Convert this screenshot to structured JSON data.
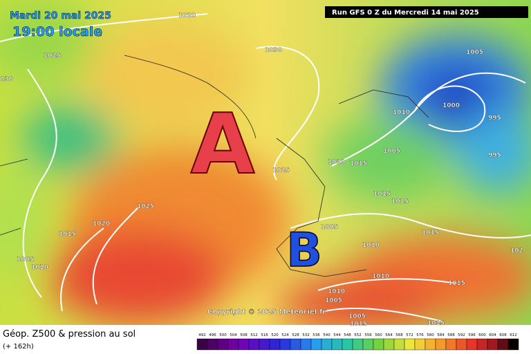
{
  "header": {
    "date": "Mardi 20 mai 2025",
    "time": "19:00 locale",
    "run": "Run GFS 0 Z du Mercredi 14 mai 2025"
  },
  "centers": {
    "high": "A",
    "low": "B"
  },
  "isobar_labels": [
    "1020",
    "1025",
    "030",
    "1030",
    "1005",
    "1000",
    "995",
    "995",
    "1010",
    "1005",
    "1020",
    "1015",
    "1025",
    "1025",
    "1020",
    "1015",
    "1005",
    "1010",
    "1015",
    "1015",
    "1005",
    "1010",
    "1015",
    "1010",
    "1010",
    "1005",
    "1005",
    "1015",
    "1015",
    "1015",
    "102"
  ],
  "copyright": "Copyright © 2025 Meteociel.fr",
  "footer": {
    "title": "Géop. Z500 & pression au sol",
    "lead": "(+ 162h)"
  },
  "colorbar": {
    "labels": [
      492,
      496,
      500,
      504,
      508,
      512,
      516,
      520,
      524,
      528,
      532,
      536,
      540,
      544,
      548,
      552,
      556,
      560,
      564,
      568,
      572,
      576,
      580,
      584,
      588,
      592,
      596,
      600,
      604,
      608,
      612
    ]
  }
}
